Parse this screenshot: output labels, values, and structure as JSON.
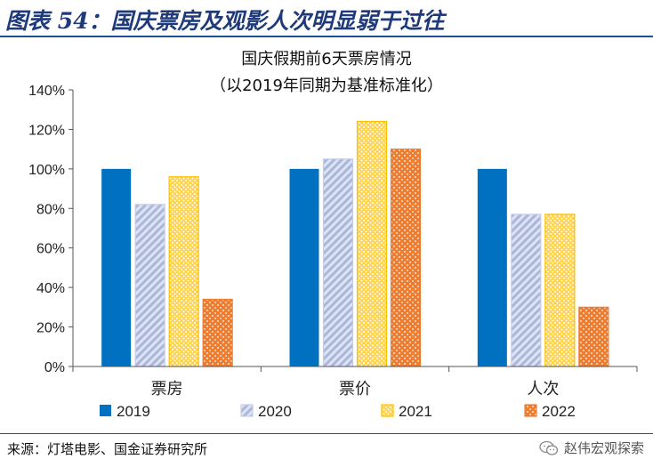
{
  "figure": {
    "title": "图表 54：国庆票房及观影人次明显弱于过往"
  },
  "chart_data": {
    "type": "bar",
    "title": "国庆假期前6天票房情况",
    "subtitle": "（以2019年同期为基准标准化）",
    "categories": [
      "票房",
      "票价",
      "人次"
    ],
    "series": [
      {
        "name": "2019",
        "values": [
          100,
          100,
          100
        ]
      },
      {
        "name": "2020",
        "values": [
          82,
          105,
          77
        ]
      },
      {
        "name": "2021",
        "values": [
          96,
          124,
          77
        ]
      },
      {
        "name": "2022",
        "values": [
          34,
          110,
          30
        ]
      }
    ],
    "ylim": [
      0,
      140
    ],
    "y_ticks": [
      "0%",
      "20%",
      "40%",
      "60%",
      "80%",
      "100%",
      "120%",
      "140%"
    ],
    "y_tick_values": [
      0,
      20,
      40,
      60,
      80,
      100,
      120,
      140
    ],
    "grid": false,
    "legend_position": "bottom",
    "colors": {
      "2019": "#0070c0",
      "2020": "#c5cde6",
      "2021": "#ffc000",
      "2022": "#ed7d31"
    },
    "patterns": {
      "2019": "solid",
      "2020": "diagonal-stripes",
      "2021": "dots",
      "2022": "dots"
    }
  },
  "footer": {
    "source": "来源：灯塔电影、国金证券研究所",
    "watermark": "赵伟宏观探索",
    "watermark_icon": "wechat-icon"
  }
}
